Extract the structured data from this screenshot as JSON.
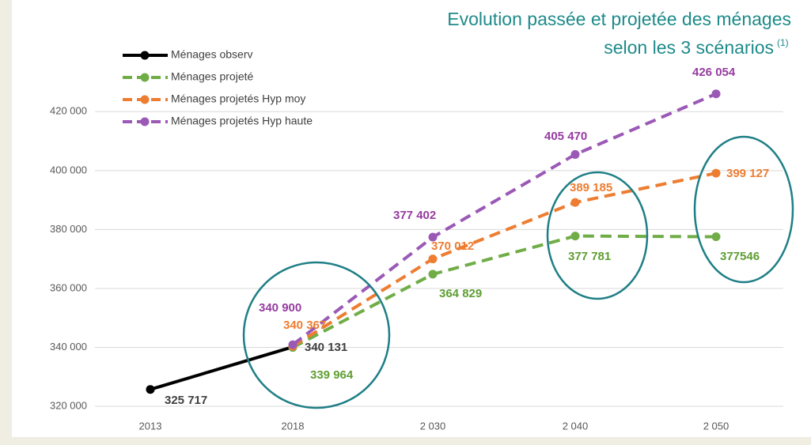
{
  "chart_data": {
    "type": "line",
    "title": "Evolution passée et projetée des ménages",
    "subtitle": "selon les 3 scénarios",
    "title_note": "(1)",
    "categories": [
      "2013",
      "2018",
      "2 030",
      "2 040",
      "2 050"
    ],
    "ylim": [
      320000,
      430000
    ],
    "yticks": [
      {
        "value": 320000,
        "label": "320 000"
      },
      {
        "value": 340000,
        "label": "340 000"
      },
      {
        "value": 360000,
        "label": "360 000"
      },
      {
        "value": 380000,
        "label": "380 000"
      },
      {
        "value": 400000,
        "label": "400 000"
      },
      {
        "value": 420000,
        "label": "420 000"
      }
    ],
    "grid": true,
    "legend": "upper left",
    "series": [
      {
        "name": "Ménages observ",
        "color": "#000000",
        "dashed": false,
        "values": [
          325717,
          340131,
          null,
          null,
          null
        ],
        "value_labels": [
          "325 717",
          "340 131",
          null,
          null,
          null
        ],
        "label_color": "#404040"
      },
      {
        "name": "Ménages projeté",
        "color": "#70ad47",
        "dashed": true,
        "values": [
          null,
          339964,
          364829,
          377781,
          377546
        ],
        "value_labels": [
          null,
          "339 964",
          "364 829",
          "377 781",
          "377546"
        ],
        "label_color": "#5e9e32"
      },
      {
        "name": "Ménages projetés Hyp moy",
        "color": "#ed7d31",
        "dashed": true,
        "values": [
          null,
          340367,
          370012,
          389185,
          399127
        ],
        "value_labels": [
          null,
          "340 367",
          "370 012",
          "389 185",
          "399 127"
        ],
        "label_color": "#ed7d31"
      },
      {
        "name": "Ménages projetés Hyp haute",
        "color": "#9b59b6",
        "dashed": true,
        "values": [
          null,
          340900,
          377402,
          405470,
          426054
        ],
        "value_labels": [
          null,
          "340 900",
          "377 402",
          "405 470",
          "426 054"
        ],
        "label_color": "#963ca0"
      }
    ]
  }
}
